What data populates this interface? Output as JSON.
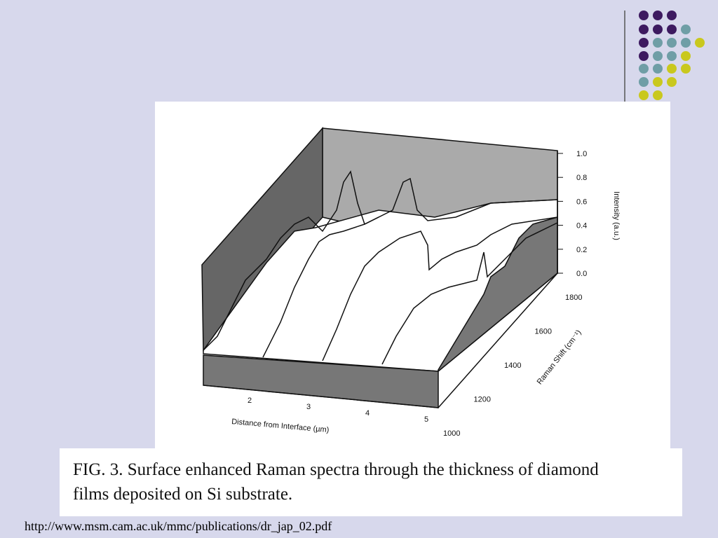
{
  "figure": {
    "intensity_ticks": [
      "1.0",
      "0.8",
      "0.6",
      "0.4",
      "0.2",
      "0.0"
    ],
    "intensity_label": "Intensity (a.u.)",
    "raman_ticks": [
      "1800",
      "1600",
      "1400",
      "1200",
      "1000"
    ],
    "raman_label": "Raman Shift (cm⁻¹)",
    "distance_ticks": [
      "2",
      "3",
      "4",
      "5"
    ],
    "distance_label": "Distance from Interface (µm)"
  },
  "caption": {
    "line1": "FIG. 3.  Surface enhanced Raman spectra through the thickness of diamond",
    "line2": "films deposited on Si substrate."
  },
  "source_url": "http://www.msm.cam.ac.uk/mmc/publications/dr_jap_02.pdf"
}
